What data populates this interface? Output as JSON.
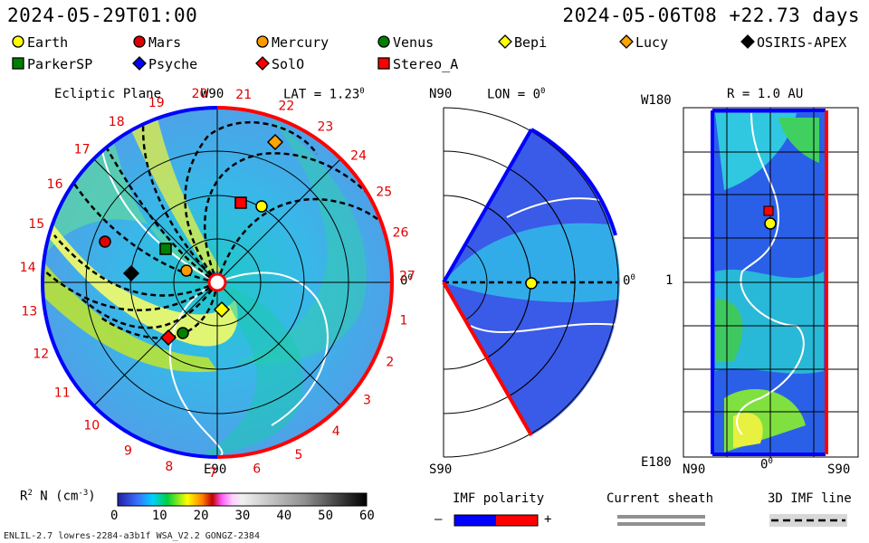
{
  "header": {
    "left_time": "2024-05-29T01:00",
    "right_time": "2024-05-06T08 +22.73 days"
  },
  "legend": {
    "row1": [
      {
        "label": "Earth",
        "shape": "circle",
        "color": "#ffff00"
      },
      {
        "label": "Mars",
        "shape": "circle",
        "color": "#e00000"
      },
      {
        "label": "Mercury",
        "shape": "circle",
        "color": "#ff9900"
      },
      {
        "label": "Venus",
        "shape": "circle",
        "color": "#008000"
      },
      {
        "label": "Bepi",
        "shape": "diamond",
        "color": "#ffff00"
      },
      {
        "label": "Lucy",
        "shape": "diamond",
        "color": "#ffa500"
      },
      {
        "label": "OSIRIS-APEX",
        "shape": "diamond",
        "color": "#000000"
      }
    ],
    "row2": [
      {
        "label": "ParkerSP",
        "shape": "square",
        "color": "#008000"
      },
      {
        "label": "Psyche",
        "shape": "diamond",
        "color": "#0000ff"
      },
      {
        "label": "SolO",
        "shape": "diamond",
        "color": "#ff0000"
      },
      {
        "label": "Stereo_A",
        "shape": "square",
        "color": "#ff0000"
      }
    ]
  },
  "panel1": {
    "title": "Ecliptic Plane",
    "w90": "W90",
    "lat_label": "LAT = 1.23",
    "lat_sup": "0",
    "e90": "E90",
    "zero": "0",
    "zero_sup": "0",
    "carrington_ticks": [
      "1",
      "2",
      "3",
      "4",
      "5",
      "6",
      "7",
      "8",
      "9",
      "10",
      "11",
      "12",
      "13",
      "14",
      "15",
      "16",
      "17",
      "18",
      "19",
      "20",
      "21",
      "22",
      "23",
      "24",
      "25",
      "26",
      "27"
    ]
  },
  "panel2": {
    "n90": "N90",
    "lon_label": "LON = 0",
    "lon_sup": "0",
    "s90": "S90",
    "zero": "0",
    "zero_sup": "0"
  },
  "panel3": {
    "w180": "W180",
    "r_label": "R = 1.0 AU",
    "one": "1",
    "e180": "E180",
    "n90": "N90",
    "zero": "0",
    "zero_sup": "0",
    "s90": "S90"
  },
  "colorbar": {
    "label": "R",
    "label_sup": "2",
    "label_rest": " N (cm",
    "label_sup2": "-3",
    "label_end": ")",
    "ticks": [
      "0",
      "10",
      "20",
      "30",
      "40",
      "50",
      "60"
    ],
    "colors": {
      "low": "#3030a0",
      "mid": "#00c000",
      "hot": "#ff0000",
      "pink": "#ff80ff",
      "high": "#000000"
    }
  },
  "imf": {
    "title": "IMF polarity",
    "minus": "–",
    "plus": "+",
    "colors": {
      "negative": "#0000ff",
      "positive": "#ff0000"
    }
  },
  "sheath": {
    "title": "Current sheath"
  },
  "imfline": {
    "title": "3D IMF line"
  },
  "footer": {
    "left": "ENLIL-2.7 lowres-2284-a3b1f WSA_V2.2 GONGZ-2384"
  }
}
